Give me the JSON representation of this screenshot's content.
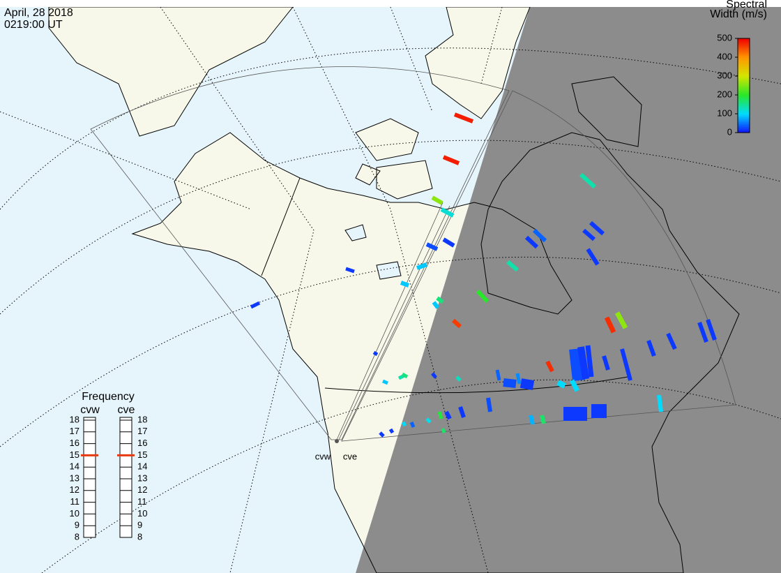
{
  "header": {
    "date": "April, 28 2018",
    "time": "0219:00 UT"
  },
  "colorbar": {
    "title_line1": "Spectral",
    "title_line2": "Width (m/s)",
    "lim": [
      0,
      500
    ],
    "ticks": [
      0,
      100,
      200,
      300,
      400,
      500
    ]
  },
  "frequency": {
    "title": "Frequency",
    "lim": [
      8,
      18
    ],
    "ticks": [
      8,
      9,
      10,
      11,
      12,
      13,
      14,
      15,
      16,
      17,
      18
    ],
    "radars": [
      {
        "name": "cvw",
        "value": 15
      },
      {
        "name": "cve",
        "value": 15
      }
    ]
  },
  "sites": [
    {
      "label": "cvw"
    },
    {
      "label": "cve"
    }
  ],
  "echoes": {
    "widths": [
      480,
      480,
      260,
      120,
      30,
      20,
      90,
      90,
      160,
      90,
      460,
      200,
      140,
      140,
      40,
      20,
      20,
      20,
      20,
      470,
      260,
      20,
      20,
      20,
      90,
      140,
      160,
      20,
      130,
      40,
      60,
      470,
      30,
      20,
      20,
      20,
      20,
      20,
      20,
      20,
      20,
      100,
      20,
      20,
      170,
      80,
      30,
      20,
      20,
      190,
      110,
      40,
      100,
      20,
      20,
      170,
      30,
      20,
      100,
      100
    ]
  }
}
